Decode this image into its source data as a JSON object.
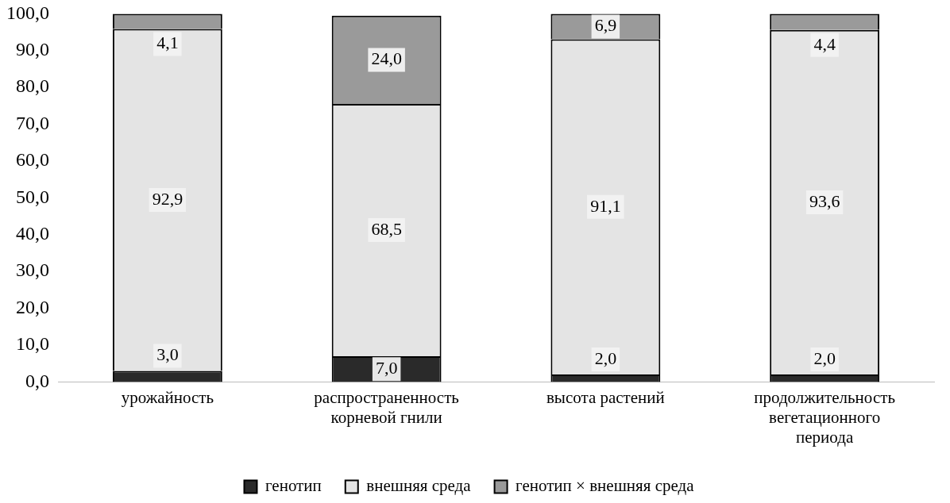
{
  "chart_data": {
    "type": "bar",
    "stacked": true,
    "categories": [
      "урожайность",
      "распространенность корневой гнили",
      "высота растений",
      "продолжительность вегетационного периода"
    ],
    "series": [
      {
        "name": "генотип",
        "color": "#2a2a2a",
        "values": [
          3.0,
          7.0,
          2.0,
          2.0
        ],
        "value_labels": [
          "3,0",
          "7,0",
          "2,0",
          "2,0"
        ]
      },
      {
        "name": "внешняя среда",
        "color": "#e4e4e4",
        "values": [
          92.9,
          68.5,
          91.1,
          93.6
        ],
        "value_labels": [
          "92,9",
          "68,5",
          "91,1",
          "93,6"
        ]
      },
      {
        "name": "генотип × внешняя среда",
        "color": "#9a9a9a",
        "values": [
          4.1,
          24.0,
          6.9,
          4.4
        ],
        "value_labels": [
          "4,1",
          "24,0",
          "6,9",
          "4,4"
        ]
      }
    ],
    "ylim": [
      0,
      100
    ],
    "yticks": [
      {
        "value": 0,
        "label": "0,0"
      },
      {
        "value": 10,
        "label": "10,0"
      },
      {
        "value": 20,
        "label": "20,0"
      },
      {
        "value": 30,
        "label": "30,0"
      },
      {
        "value": 40,
        "label": "40,0"
      },
      {
        "value": 50,
        "label": "50,0"
      },
      {
        "value": 60,
        "label": "60,0"
      },
      {
        "value": 70,
        "label": "70,0"
      },
      {
        "value": 80,
        "label": "80,0"
      },
      {
        "value": 90,
        "label": "90,0"
      },
      {
        "value": 100,
        "label": "100,0"
      }
    ],
    "grid": false,
    "legend": "bottom"
  }
}
